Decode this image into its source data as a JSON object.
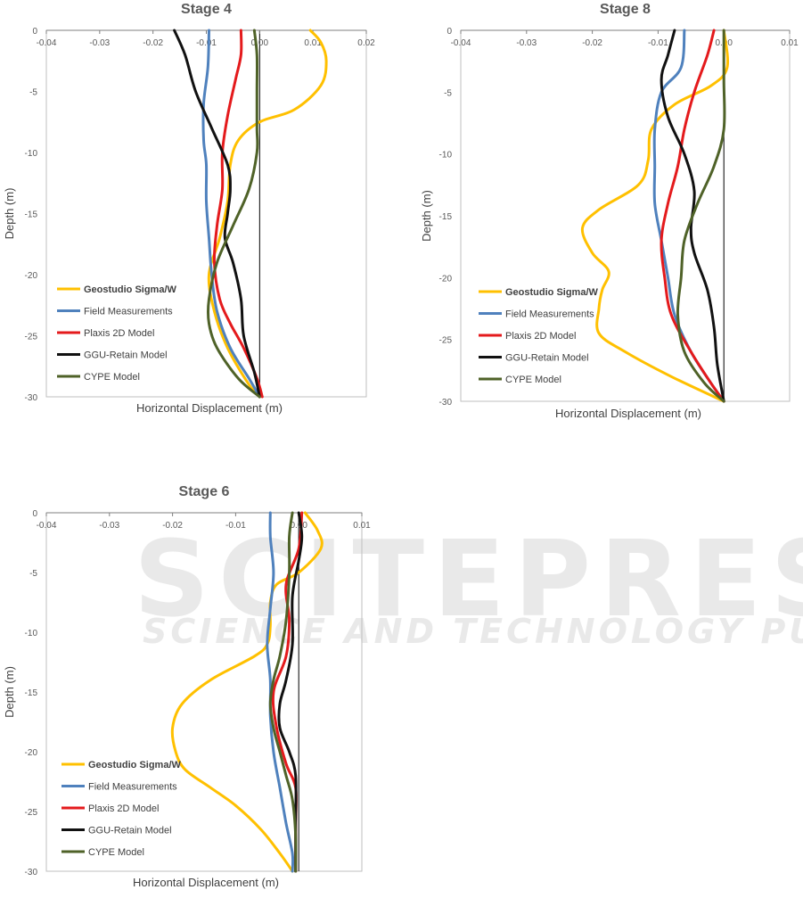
{
  "watermark": {
    "brand": "SCITEPRESS",
    "tagline": "SCIENCE AND TECHNOLOGY PUBLICATIONS"
  },
  "colors": {
    "Geostudio Sigma/W": "#FFC000",
    "Field Measurements": "#4F81BD",
    "Plaxis 2D Model": "#E41A1C",
    "GGU-Retain Model": "#111111",
    "CYPE Model": "#4F6228"
  },
  "chart_data": [
    {
      "type": "line",
      "title": "Stage 4",
      "xlabel": "Horizontal Displacement (m)",
      "ylabel": "Depth (m)",
      "xlim": [
        -0.04,
        0.02
      ],
      "ylim": [
        -30,
        0
      ],
      "xticks": [
        "-0.04",
        "-0.03",
        "-0.02",
        "-0.01",
        "0.00",
        "0.01",
        "0.02"
      ],
      "yticks": [
        "0",
        "-5",
        "-10",
        "-15",
        "-20",
        "-25",
        "-30"
      ],
      "grid": false,
      "legend": "bottom-left",
      "series": [
        {
          "name": "Geostudio Sigma/W",
          "points": [
            [
              0.0095,
              0
            ],
            [
              0.0115,
              -1
            ],
            [
              0.0125,
              -2.5
            ],
            [
              0.0115,
              -4.5
            ],
            [
              0.0065,
              -6.5
            ],
            [
              0.0,
              -7.5
            ],
            [
              -0.004,
              -9
            ],
            [
              -0.0055,
              -11
            ],
            [
              -0.006,
              -14
            ],
            [
              -0.0075,
              -17
            ],
            [
              -0.0095,
              -20
            ],
            [
              -0.0085,
              -23
            ],
            [
              -0.006,
              -26
            ],
            [
              -0.002,
              -29
            ],
            [
              0.0,
              -30
            ]
          ]
        },
        {
          "name": "Field Measurements",
          "points": [
            [
              -0.0095,
              0
            ],
            [
              -0.0097,
              -3
            ],
            [
              -0.0105,
              -6
            ],
            [
              -0.0105,
              -9
            ],
            [
              -0.01,
              -11
            ],
            [
              -0.01,
              -14
            ],
            [
              -0.0095,
              -17
            ],
            [
              -0.009,
              -20
            ],
            [
              -0.008,
              -23
            ],
            [
              -0.0055,
              -26
            ],
            [
              -0.002,
              -28.5
            ],
            [
              0.0,
              -30
            ]
          ]
        },
        {
          "name": "Plaxis 2D Model",
          "points": [
            [
              -0.0035,
              0
            ],
            [
              -0.0035,
              -2
            ],
            [
              -0.0045,
              -4
            ],
            [
              -0.006,
              -7
            ],
            [
              -0.007,
              -10
            ],
            [
              -0.007,
              -13
            ],
            [
              -0.008,
              -16
            ],
            [
              -0.0085,
              -19
            ],
            [
              -0.0075,
              -22
            ],
            [
              -0.0055,
              -24
            ],
            [
              -0.003,
              -26
            ],
            [
              -0.0005,
              -28.5
            ],
            [
              0.0005,
              -30
            ]
          ]
        },
        {
          "name": "GGU-Retain Model",
          "points": [
            [
              -0.016,
              0
            ],
            [
              -0.014,
              -2
            ],
            [
              -0.012,
              -5
            ],
            [
              -0.009,
              -8
            ],
            [
              -0.006,
              -11
            ],
            [
              -0.0055,
              -13
            ],
            [
              -0.006,
              -15
            ],
            [
              -0.0065,
              -17
            ],
            [
              -0.005,
              -19
            ],
            [
              -0.0035,
              -22
            ],
            [
              -0.003,
              -25
            ],
            [
              -0.001,
              -28
            ],
            [
              0.0,
              -30
            ]
          ]
        },
        {
          "name": "CYPE Model",
          "points": [
            [
              -0.001,
              0
            ],
            [
              -0.0005,
              -2
            ],
            [
              -0.0005,
              -5
            ],
            [
              -0.0005,
              -8
            ],
            [
              -0.0005,
              -10
            ],
            [
              -0.002,
              -13
            ],
            [
              -0.005,
              -16
            ],
            [
              -0.008,
              -19
            ],
            [
              -0.0095,
              -22
            ],
            [
              -0.0095,
              -24
            ],
            [
              -0.008,
              -26
            ],
            [
              -0.004,
              -28.5
            ],
            [
              0.0,
              -30
            ]
          ]
        }
      ]
    },
    {
      "type": "line",
      "title": "Stage 8",
      "xlabel": "Horizontal Displacement (m)",
      "ylabel": "Depth (m)",
      "xlim": [
        -0.04,
        0.01
      ],
      "ylim": [
        -30,
        0
      ],
      "xticks": [
        "-0.04",
        "-0.03",
        "-0.02",
        "-0.01",
        "0.00",
        "0.01"
      ],
      "yticks": [
        "0",
        "-5",
        "-10",
        "-15",
        "-20",
        "-25",
        "-30"
      ],
      "grid": false,
      "legend": "bottom-left",
      "series": [
        {
          "name": "Geostudio Sigma/W",
          "points": [
            [
              0.0,
              0
            ],
            [
              0.0005,
              -3
            ],
            [
              -0.002,
              -4.5
            ],
            [
              -0.0075,
              -6
            ],
            [
              -0.011,
              -8
            ],
            [
              -0.0115,
              -10.5
            ],
            [
              -0.013,
              -12.5
            ],
            [
              -0.019,
              -14.5
            ],
            [
              -0.0215,
              -16
            ],
            [
              -0.02,
              -18
            ],
            [
              -0.0175,
              -19.5
            ],
            [
              -0.0185,
              -21
            ],
            [
              -0.019,
              -22.5
            ],
            [
              -0.019,
              -24.5
            ],
            [
              -0.015,
              -26
            ],
            [
              -0.008,
              -28
            ],
            [
              0.0,
              -30
            ]
          ]
        },
        {
          "name": "Field Measurements",
          "points": [
            [
              -0.006,
              0
            ],
            [
              -0.0065,
              -3
            ],
            [
              -0.0095,
              -5
            ],
            [
              -0.0105,
              -8
            ],
            [
              -0.0105,
              -11
            ],
            [
              -0.0105,
              -14
            ],
            [
              -0.0095,
              -17
            ],
            [
              -0.0085,
              -20
            ],
            [
              -0.0075,
              -23
            ],
            [
              -0.005,
              -26
            ],
            [
              -0.002,
              -28.5
            ],
            [
              0.0,
              -30
            ]
          ]
        },
        {
          "name": "Plaxis 2D Model",
          "points": [
            [
              -0.0015,
              0
            ],
            [
              -0.0025,
              -2
            ],
            [
              -0.0045,
              -5
            ],
            [
              -0.006,
              -8
            ],
            [
              -0.007,
              -11
            ],
            [
              -0.0085,
              -14
            ],
            [
              -0.0095,
              -17
            ],
            [
              -0.009,
              -20
            ],
            [
              -0.008,
              -23
            ],
            [
              -0.005,
              -26
            ],
            [
              -0.002,
              -28.5
            ],
            [
              0.0,
              -30
            ]
          ]
        },
        {
          "name": "GGU-Retain Model",
          "points": [
            [
              -0.0075,
              0
            ],
            [
              -0.0085,
              -2
            ],
            [
              -0.0095,
              -4
            ],
            [
              -0.0085,
              -7
            ],
            [
              -0.006,
              -10
            ],
            [
              -0.0045,
              -13
            ],
            [
              -0.005,
              -16
            ],
            [
              -0.0045,
              -18
            ],
            [
              -0.0025,
              -21
            ],
            [
              -0.0015,
              -24
            ],
            [
              -0.001,
              -27
            ],
            [
              0.0,
              -30
            ]
          ]
        },
        {
          "name": "CYPE Model",
          "points": [
            [
              0.0,
              0
            ],
            [
              0.0,
              -4
            ],
            [
              0.0,
              -8
            ],
            [
              -0.0015,
              -11
            ],
            [
              -0.004,
              -14
            ],
            [
              -0.006,
              -17
            ],
            [
              -0.0065,
              -20
            ],
            [
              -0.007,
              -23
            ],
            [
              -0.006,
              -26
            ],
            [
              -0.003,
              -28.5
            ],
            [
              0.0,
              -30
            ]
          ]
        }
      ]
    },
    {
      "type": "line",
      "title": "Stage 6",
      "xlabel": "Horizontal Displacement (m)",
      "ylabel": "Depth (m)",
      "xlim": [
        -0.04,
        0.01
      ],
      "ylim": [
        -30,
        0
      ],
      "xticks": [
        "-0.04",
        "-0.03",
        "-0.02",
        "-0.01",
        "0.00",
        "0.01"
      ],
      "yticks": [
        "0",
        "-5",
        "-10",
        "-15",
        "-20",
        "-25",
        "-30"
      ],
      "grid": false,
      "legend": "bottom-left",
      "series": [
        {
          "name": "Geostudio Sigma/W",
          "points": [
            [
              0.001,
              0
            ],
            [
              0.003,
              -1.5
            ],
            [
              0.0035,
              -3
            ],
            [
              0.0,
              -5
            ],
            [
              -0.0035,
              -6
            ],
            [
              -0.0045,
              -7.5
            ],
            [
              -0.0045,
              -9.5
            ],
            [
              -0.005,
              -11
            ],
            [
              -0.007,
              -12
            ],
            [
              -0.014,
              -14
            ],
            [
              -0.0185,
              -16
            ],
            [
              -0.02,
              -18
            ],
            [
              -0.0195,
              -20
            ],
            [
              -0.018,
              -21.5
            ],
            [
              -0.014,
              -23
            ],
            [
              -0.01,
              -24.5
            ],
            [
              -0.006,
              -26.5
            ],
            [
              -0.003,
              -28.5
            ],
            [
              -0.001,
              -30
            ]
          ]
        },
        {
          "name": "Field Measurements",
          "points": [
            [
              -0.0045,
              0
            ],
            [
              -0.0045,
              -2
            ],
            [
              -0.004,
              -5
            ],
            [
              -0.0045,
              -8
            ],
            [
              -0.005,
              -11
            ],
            [
              -0.0045,
              -14
            ],
            [
              -0.0045,
              -17
            ],
            [
              -0.004,
              -20
            ],
            [
              -0.003,
              -23
            ],
            [
              -0.002,
              -26
            ],
            [
              -0.001,
              -28.5
            ],
            [
              -0.001,
              -30
            ]
          ]
        },
        {
          "name": "Plaxis 2D Model",
          "points": [
            [
              0.0005,
              0
            ],
            [
              0.0,
              -3
            ],
            [
              -0.002,
              -6
            ],
            [
              -0.0015,
              -9
            ],
            [
              -0.002,
              -12
            ],
            [
              -0.004,
              -15
            ],
            [
              -0.0035,
              -18
            ],
            [
              -0.002,
              -21
            ],
            [
              -0.0005,
              -23
            ],
            [
              -0.0005,
              -26
            ],
            [
              -0.0005,
              -28.5
            ],
            [
              -0.0005,
              -30
            ]
          ]
        },
        {
          "name": "GGU-Retain Model",
          "points": [
            [
              0.0,
              0
            ],
            [
              0.0005,
              -2
            ],
            [
              0.0,
              -4
            ],
            [
              -0.001,
              -7
            ],
            [
              -0.001,
              -11
            ],
            [
              -0.002,
              -14
            ],
            [
              -0.003,
              -16
            ],
            [
              -0.003,
              -18
            ],
            [
              -0.0015,
              -20
            ],
            [
              -0.0005,
              -22
            ],
            [
              -0.0005,
              -26
            ],
            [
              -0.0005,
              -30
            ]
          ]
        },
        {
          "name": "CYPE Model",
          "points": [
            [
              -0.001,
              0
            ],
            [
              -0.0015,
              -2
            ],
            [
              -0.0015,
              -5
            ],
            [
              -0.002,
              -9
            ],
            [
              -0.003,
              -12
            ],
            [
              -0.004,
              -14
            ],
            [
              -0.0045,
              -16
            ],
            [
              -0.004,
              -18
            ],
            [
              -0.003,
              -20
            ],
            [
              -0.002,
              -22
            ],
            [
              -0.001,
              -24
            ],
            [
              -0.0005,
              -27
            ],
            [
              -0.0005,
              -30
            ]
          ]
        }
      ]
    }
  ]
}
